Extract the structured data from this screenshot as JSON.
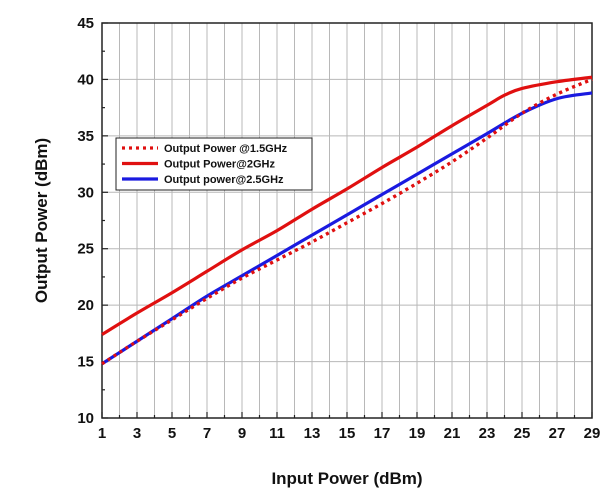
{
  "chart_data": {
    "type": "line",
    "xlabel": "Input Power (dBm)",
    "ylabel": "Output Power (dBm)",
    "xlim": [
      1,
      29
    ],
    "ylim": [
      10,
      45
    ],
    "x_ticks": [
      1,
      3,
      5,
      7,
      9,
      11,
      13,
      15,
      17,
      19,
      21,
      23,
      25,
      27,
      29
    ],
    "y_ticks": [
      10,
      15,
      20,
      25,
      30,
      35,
      40,
      45
    ],
    "grid": true,
    "legend_position": "upper-left",
    "series": [
      {
        "name": "Output Power @1.5GHz",
        "color": "#e01010",
        "style": "dotted",
        "x": [
          1,
          3,
          5,
          7,
          9,
          11,
          13,
          15,
          17,
          19,
          21,
          23,
          25,
          27,
          29
        ],
        "y": [
          14.8,
          16.8,
          18.7,
          20.6,
          22.4,
          24.0,
          25.6,
          27.3,
          29.0,
          30.8,
          32.7,
          34.8,
          37.0,
          38.7,
          40.0
        ]
      },
      {
        "name": "Output Power@2GHz",
        "color": "#e01010",
        "style": "solid",
        "x": [
          1,
          3,
          5,
          7,
          9,
          11,
          13,
          15,
          17,
          19,
          21,
          23,
          24,
          25,
          27,
          29
        ],
        "y": [
          17.4,
          19.3,
          21.1,
          23.0,
          24.9,
          26.6,
          28.5,
          30.3,
          32.2,
          34.0,
          35.9,
          37.7,
          38.6,
          39.2,
          39.8,
          40.2
        ]
      },
      {
        "name": "Output power@2.5GHz",
        "color": "#1a1ae0",
        "style": "solid",
        "x": [
          1,
          3,
          5,
          7,
          9,
          11,
          13,
          15,
          17,
          19,
          21,
          23,
          25,
          27,
          29
        ],
        "y": [
          14.8,
          16.8,
          18.8,
          20.8,
          22.6,
          24.4,
          26.2,
          28.0,
          29.8,
          31.6,
          33.4,
          35.2,
          37.0,
          38.3,
          38.8
        ]
      }
    ]
  }
}
